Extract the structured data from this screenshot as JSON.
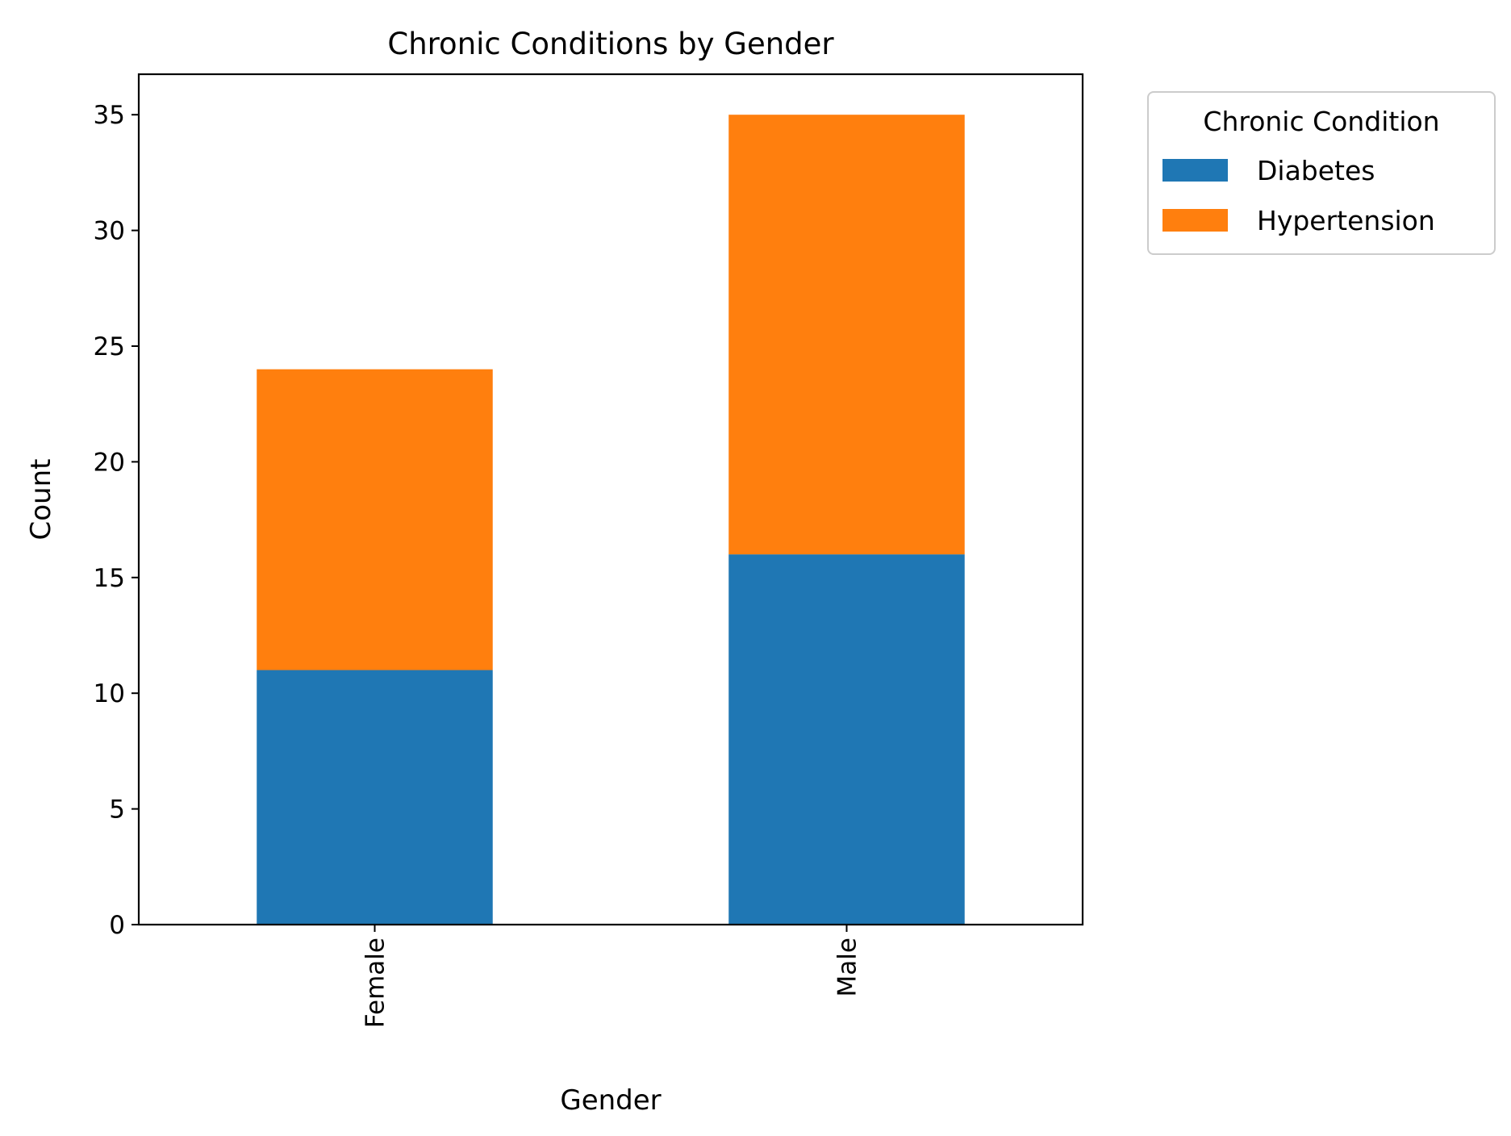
{
  "chart_data": {
    "type": "bar",
    "stacked": true,
    "title": "Chronic Conditions by Gender",
    "xlabel": "Gender",
    "ylabel": "Count",
    "categories": [
      "Female",
      "Male"
    ],
    "series": [
      {
        "name": "Diabetes",
        "values": [
          11,
          16
        ],
        "color": "#1f77b4"
      },
      {
        "name": "Hypertension",
        "values": [
          13,
          19
        ],
        "color": "#ff7f0e"
      }
    ],
    "ylim": [
      0,
      36.75
    ],
    "yticks": [
      0,
      5,
      10,
      15,
      20,
      25,
      30,
      35
    ],
    "grid": false,
    "legend": {
      "title": "Chronic Condition",
      "placement": "outside-top-right"
    }
  }
}
